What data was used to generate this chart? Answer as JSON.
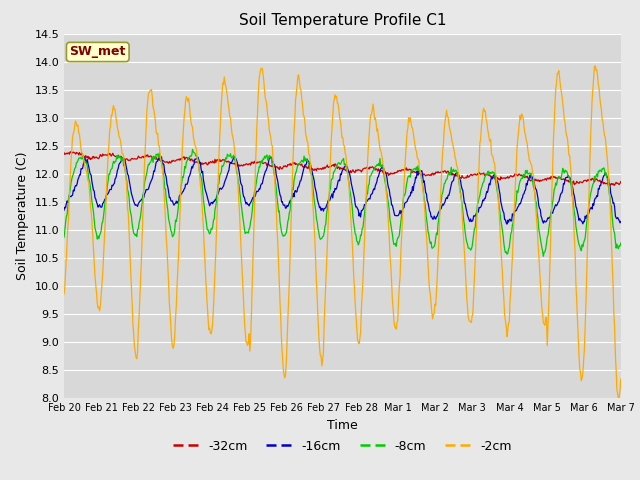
{
  "title": "Soil Temperature Profile C1",
  "xlabel": "Time",
  "ylabel": "Soil Temperature (C)",
  "ylim": [
    8.0,
    14.5
  ],
  "yticks": [
    8.0,
    8.5,
    9.0,
    9.5,
    10.0,
    10.5,
    11.0,
    11.5,
    12.0,
    12.5,
    13.0,
    13.5,
    14.0,
    14.5
  ],
  "annotation": "SW_met",
  "colors": {
    "-32cm": "#cc0000",
    "-16cm": "#0000cc",
    "-8cm": "#00cc00",
    "-2cm": "#ffaa00"
  },
  "legend_labels": [
    "-32cm",
    "-16cm",
    "-8cm",
    "-2cm"
  ],
  "fig_facecolor": "#e8e8e8",
  "ax_facecolor": "#d8d8d8",
  "n_days": 15,
  "pts_per_day": 48,
  "tick_labels": [
    "Feb 20",
    "Feb 21",
    "Feb 22",
    "Feb 23",
    "Feb 24",
    "Feb 25",
    "Feb 26",
    "Feb 27",
    "Feb 28",
    "Mar 1",
    "Mar 2",
    "Mar 3",
    "Mar 4",
    "Mar 5",
    "Mar 6",
    "Mar 7"
  ]
}
